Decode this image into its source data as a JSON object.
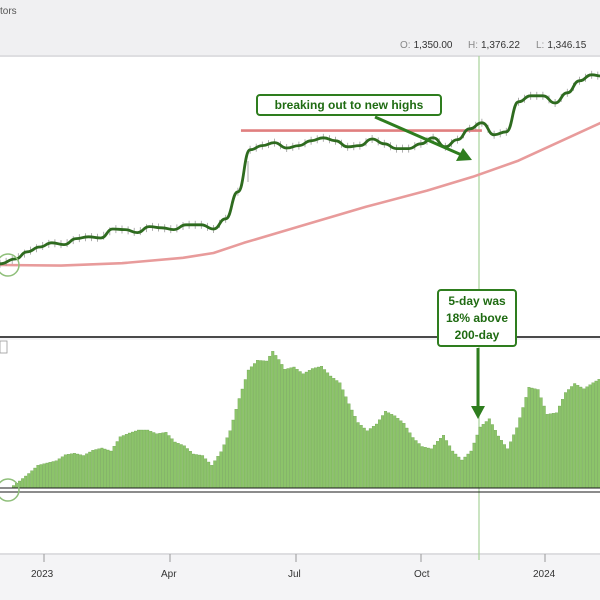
{
  "header": {
    "title_fragment": "tors",
    "ohlc": [
      {
        "key": "O:",
        "value": "1,350.00"
      },
      {
        "key": "H:",
        "value": "1,376.22"
      },
      {
        "key": "L:",
        "value": "1,346.15"
      }
    ]
  },
  "annotations": {
    "breakout": "breaking out to new highs",
    "pct_line1": "5-day was",
    "pct_line2": "18% above",
    "pct_line3": "200-day"
  },
  "colors": {
    "price_line": "#2e6b1f",
    "ma200_line": "#e89b9b",
    "resistance": "#e07f7f",
    "histogram": "#8cc46a",
    "histogram_edge": "#5f9a3f",
    "annotation": "#2e7d1e",
    "cursor_line": "#a8d29a"
  },
  "chart_data": [
    {
      "type": "line",
      "title": "",
      "x_tick_labels": [
        "2023",
        "Apr",
        "Jul",
        "Oct",
        "2024"
      ],
      "series": [
        {
          "values": [
            [
              0,
              1065
            ],
            [
              5,
              1073
            ],
            [
              9,
              1085
            ],
            [
              13,
              1093
            ],
            [
              17,
              1100
            ],
            [
              21,
              1097
            ],
            [
              25,
              1107
            ],
            [
              29,
              1110
            ],
            [
              33,
              1108
            ],
            [
              37,
              1123
            ],
            [
              41,
              1122
            ],
            [
              45,
              1117
            ],
            [
              49,
              1127
            ],
            [
              53,
              1125
            ],
            [
              57,
              1122
            ],
            [
              61,
              1130
            ],
            [
              66,
              1130
            ],
            [
              70,
              1123
            ],
            [
              74,
              1140
            ],
            [
              78,
              1185
            ],
            [
              82,
              1255
            ],
            [
              86,
              1262
            ],
            [
              90,
              1267
            ],
            [
              94,
              1258
            ],
            [
              98,
              1262
            ],
            [
              102,
              1270
            ],
            [
              106,
              1275
            ],
            [
              110,
              1270
            ],
            [
              114,
              1260
            ],
            [
              118,
              1262
            ],
            [
              122,
              1273
            ],
            [
              126,
              1265
            ],
            [
              130,
              1257
            ],
            [
              134,
              1257
            ],
            [
              138,
              1265
            ],
            [
              142,
              1275
            ],
            [
              146,
              1260
            ],
            [
              150,
              1272
            ],
            [
              154,
              1290
            ],
            [
              158,
              1300
            ],
            [
              162,
              1280
            ],
            [
              166,
              1285
            ],
            [
              170,
              1335
            ],
            [
              174,
              1345
            ],
            [
              178,
              1345
            ],
            [
              182,
              1333
            ],
            [
              186,
              1350
            ],
            [
              190,
              1370
            ],
            [
              194,
              1380
            ],
            [
              197,
              1378
            ]
          ]
        },
        {
          "values": [
            [
              0,
              1063
            ],
            [
              20,
              1062
            ],
            [
              40,
              1066
            ],
            [
              60,
              1075
            ],
            [
              70,
              1083
            ],
            [
              80,
              1100
            ],
            [
              100,
              1130
            ],
            [
              120,
              1160
            ],
            [
              140,
              1187
            ],
            [
              155,
              1210
            ],
            [
              170,
              1237
            ],
            [
              185,
              1272
            ],
            [
              197,
              1300
            ]
          ]
        }
      ],
      "annotations": [
        {
          "type": "hline",
          "y": 1287,
          "x_from": 79,
          "x_to": 158,
          "label": ""
        }
      ]
    },
    {
      "type": "area",
      "title": "",
      "x_tick_labels": [
        "2023",
        "Apr",
        "Jul",
        "Oct",
        "2024"
      ],
      "series": [
        {
          "values": [
            [
              0,
              0
            ],
            [
              3,
              0.3
            ],
            [
              6,
              1.2
            ],
            [
              9,
              2.2
            ],
            [
              12,
              3.3
            ],
            [
              15,
              3.6
            ],
            [
              18,
              3.9
            ],
            [
              21,
              4.7
            ],
            [
              24,
              4.9
            ],
            [
              27,
              4.6
            ],
            [
              30,
              5.3
            ],
            [
              33,
              5.6
            ],
            [
              36,
              5.2
            ],
            [
              39,
              7.1
            ],
            [
              42,
              7.6
            ],
            [
              45,
              8.0
            ],
            [
              48,
              8.0
            ],
            [
              51,
              7.5
            ],
            [
              54,
              7.7
            ],
            [
              57,
              6.4
            ],
            [
              60,
              5.9
            ],
            [
              63,
              4.8
            ],
            [
              66,
              4.6
            ],
            [
              69,
              3.3
            ],
            [
              72,
              5.1
            ],
            [
              75,
              7.9
            ],
            [
              78,
              12.2
            ],
            [
              81,
              16.0
            ],
            [
              84,
              17.3
            ],
            [
              87,
              17.2
            ],
            [
              89,
              18.5
            ],
            [
              91,
              17.4
            ],
            [
              93,
              16.1
            ],
            [
              96,
              16.4
            ],
            [
              99,
              15.5
            ],
            [
              102,
              16.2
            ],
            [
              105,
              16.5
            ],
            [
              108,
              15.2
            ],
            [
              111,
              14.3
            ],
            [
              114,
              11.5
            ],
            [
              117,
              9.0
            ],
            [
              120,
              7.9
            ],
            [
              123,
              8.8
            ],
            [
              126,
              10.5
            ],
            [
              129,
              9.9
            ],
            [
              132,
              8.9
            ],
            [
              135,
              7.0
            ],
            [
              138,
              5.8
            ],
            [
              141,
              5.5
            ],
            [
              143,
              6.5
            ],
            [
              145,
              7.3
            ],
            [
              148,
              5.2
            ],
            [
              151,
              4.0
            ],
            [
              154,
              5.2
            ],
            [
              157,
              8.4
            ],
            [
              160,
              9.5
            ],
            [
              163,
              7.2
            ],
            [
              166,
              5.5
            ],
            [
              169,
              8.3
            ],
            [
              173,
              13.7
            ],
            [
              176,
              13.4
            ],
            [
              179,
              10.1
            ],
            [
              182,
              10.3
            ],
            [
              185,
              13.0
            ],
            [
              188,
              14.2
            ],
            [
              191,
              13.5
            ],
            [
              194,
              14.3
            ],
            [
              197,
              15.0
            ]
          ]
        }
      ]
    }
  ]
}
